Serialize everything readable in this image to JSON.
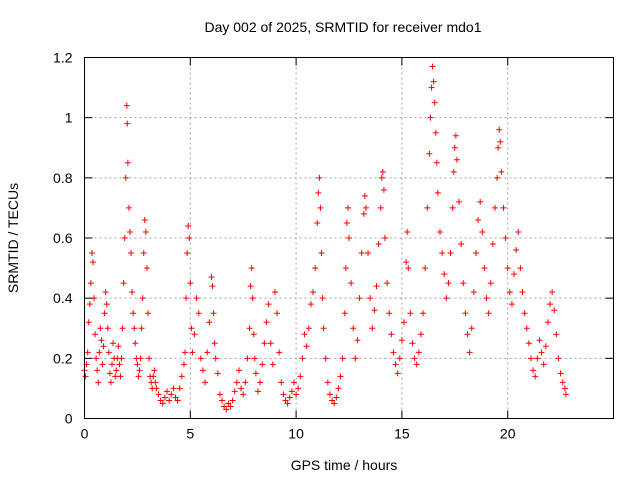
{
  "chart_data": {
    "type": "scatter",
    "title": "Day 002 of 2025, SRMTID for receiver mdo1",
    "xlabel": "GPS time / hours",
    "ylabel": "SRMTID / TECUs",
    "xlim": [
      0,
      25
    ],
    "ylim": [
      0,
      1.2
    ],
    "x_ticks": [
      0,
      5,
      10,
      15,
      20
    ],
    "x_tick_labels": [
      "0",
      "5",
      "10",
      "15",
      "20"
    ],
    "y_ticks": [
      0,
      0.2,
      0.4,
      0.6,
      0.8,
      1.0,
      1.2
    ],
    "y_tick_labels": [
      "0",
      "0.2",
      "0.4",
      "0.6",
      "0.8",
      "1",
      "1.2"
    ],
    "grid": true,
    "marker": "plus",
    "color": "#ff0000",
    "series": [
      {
        "name": "SRMTID",
        "points": [
          [
            0.0,
            0.16
          ],
          [
            0.05,
            0.14
          ],
          [
            0.1,
            0.18
          ],
          [
            0.15,
            0.22
          ],
          [
            0.2,
            0.32
          ],
          [
            0.25,
            0.38
          ],
          [
            0.3,
            0.45
          ],
          [
            0.35,
            0.55
          ],
          [
            0.4,
            0.52
          ],
          [
            0.45,
            0.4
          ],
          [
            0.5,
            0.28
          ],
          [
            0.55,
            0.2
          ],
          [
            0.6,
            0.16
          ],
          [
            0.65,
            0.12
          ],
          [
            0.7,
            0.22
          ],
          [
            0.75,
            0.3
          ],
          [
            0.8,
            0.26
          ],
          [
            0.85,
            0.18
          ],
          [
            0.9,
            0.24
          ],
          [
            0.95,
            0.35
          ],
          [
            1.0,
            0.42
          ],
          [
            1.05,
            0.38
          ],
          [
            1.1,
            0.3
          ],
          [
            1.15,
            0.22
          ],
          [
            1.2,
            0.15
          ],
          [
            1.25,
            0.12
          ],
          [
            1.3,
            0.18
          ],
          [
            1.35,
            0.25
          ],
          [
            1.4,
            0.2
          ],
          [
            1.45,
            0.14
          ],
          [
            1.5,
            0.16
          ],
          [
            1.55,
            0.2
          ],
          [
            1.6,
            0.24
          ],
          [
            1.65,
            0.18
          ],
          [
            1.7,
            0.14
          ],
          [
            1.75,
            0.2
          ],
          [
            1.8,
            0.3
          ],
          [
            1.85,
            0.45
          ],
          [
            1.9,
            0.6
          ],
          [
            1.95,
            0.8
          ],
          [
            2.0,
            1.04
          ],
          [
            2.02,
            0.98
          ],
          [
            2.05,
            0.85
          ],
          [
            2.1,
            0.7
          ],
          [
            2.15,
            0.62
          ],
          [
            2.2,
            0.55
          ],
          [
            2.25,
            0.42
          ],
          [
            2.3,
            0.35
          ],
          [
            2.35,
            0.3
          ],
          [
            2.4,
            0.25
          ],
          [
            2.45,
            0.2
          ],
          [
            2.5,
            0.18
          ],
          [
            2.55,
            0.14
          ],
          [
            2.6,
            0.16
          ],
          [
            2.65,
            0.2
          ],
          [
            2.7,
            0.3
          ],
          [
            2.75,
            0.4
          ],
          [
            2.8,
            0.55
          ],
          [
            2.85,
            0.66
          ],
          [
            2.9,
            0.62
          ],
          [
            2.95,
            0.5
          ],
          [
            3.0,
            0.35
          ],
          [
            3.05,
            0.2
          ],
          [
            3.1,
            0.14
          ],
          [
            3.15,
            0.12
          ],
          [
            3.2,
            0.1
          ],
          [
            3.25,
            0.14
          ],
          [
            3.3,
            0.16
          ],
          [
            3.35,
            0.12
          ],
          [
            3.4,
            0.1
          ],
          [
            3.5,
            0.08
          ],
          [
            3.6,
            0.06
          ],
          [
            3.7,
            0.05
          ],
          [
            3.8,
            0.07
          ],
          [
            3.9,
            0.09
          ],
          [
            4.0,
            0.06
          ],
          [
            4.1,
            0.08
          ],
          [
            4.2,
            0.1
          ],
          [
            4.3,
            0.07
          ],
          [
            4.4,
            0.06
          ],
          [
            4.5,
            0.1
          ],
          [
            4.6,
            0.14
          ],
          [
            4.7,
            0.18
          ],
          [
            4.75,
            0.22
          ],
          [
            4.8,
            0.4
          ],
          [
            4.85,
            0.55
          ],
          [
            4.9,
            0.64
          ],
          [
            4.95,
            0.6
          ],
          [
            5.0,
            0.45
          ],
          [
            5.05,
            0.3
          ],
          [
            5.1,
            0.22
          ],
          [
            5.2,
            0.28
          ],
          [
            5.3,
            0.4
          ],
          [
            5.4,
            0.35
          ],
          [
            5.5,
            0.2
          ],
          [
            5.6,
            0.16
          ],
          [
            5.7,
            0.12
          ],
          [
            5.8,
            0.22
          ],
          [
            5.9,
            0.32
          ],
          [
            6.0,
            0.47
          ],
          [
            6.05,
            0.44
          ],
          [
            6.1,
            0.35
          ],
          [
            6.15,
            0.25
          ],
          [
            6.2,
            0.2
          ],
          [
            6.3,
            0.15
          ],
          [
            6.4,
            0.08
          ],
          [
            6.5,
            0.06
          ],
          [
            6.6,
            0.04
          ],
          [
            6.7,
            0.03
          ],
          [
            6.8,
            0.05
          ],
          [
            6.9,
            0.04
          ],
          [
            7.0,
            0.06
          ],
          [
            7.1,
            0.09
          ],
          [
            7.2,
            0.12
          ],
          [
            7.3,
            0.16
          ],
          [
            7.4,
            0.1
          ],
          [
            7.5,
            0.08
          ],
          [
            7.6,
            0.12
          ],
          [
            7.7,
            0.2
          ],
          [
            7.8,
            0.3
          ],
          [
            7.85,
            0.44
          ],
          [
            7.9,
            0.5
          ],
          [
            7.95,
            0.4
          ],
          [
            8.0,
            0.28
          ],
          [
            8.05,
            0.2
          ],
          [
            8.1,
            0.15
          ],
          [
            8.2,
            0.09
          ],
          [
            8.3,
            0.12
          ],
          [
            8.4,
            0.18
          ],
          [
            8.5,
            0.25
          ],
          [
            8.6,
            0.32
          ],
          [
            8.7,
            0.38
          ],
          [
            8.8,
            0.25
          ],
          [
            8.9,
            0.18
          ],
          [
            9.0,
            0.42
          ],
          [
            9.1,
            0.35
          ],
          [
            9.2,
            0.22
          ],
          [
            9.3,
            0.12
          ],
          [
            9.4,
            0.08
          ],
          [
            9.5,
            0.06
          ],
          [
            9.6,
            0.05
          ],
          [
            9.7,
            0.07
          ],
          [
            9.8,
            0.09
          ],
          [
            9.9,
            0.12
          ],
          [
            10.0,
            0.08
          ],
          [
            10.1,
            0.1
          ],
          [
            10.2,
            0.14
          ],
          [
            10.3,
            0.2
          ],
          [
            10.4,
            0.28
          ],
          [
            10.5,
            0.24
          ],
          [
            10.6,
            0.3
          ],
          [
            10.7,
            0.38
          ],
          [
            10.8,
            0.42
          ],
          [
            10.9,
            0.5
          ],
          [
            11.0,
            0.65
          ],
          [
            11.05,
            0.75
          ],
          [
            11.1,
            0.8
          ],
          [
            11.15,
            0.7
          ],
          [
            11.2,
            0.55
          ],
          [
            11.25,
            0.4
          ],
          [
            11.3,
            0.3
          ],
          [
            11.4,
            0.2
          ],
          [
            11.5,
            0.12
          ],
          [
            11.6,
            0.08
          ],
          [
            11.7,
            0.06
          ],
          [
            11.8,
            0.05
          ],
          [
            11.9,
            0.07
          ],
          [
            12.0,
            0.1
          ],
          [
            12.1,
            0.14
          ],
          [
            12.2,
            0.2
          ],
          [
            12.3,
            0.35
          ],
          [
            12.35,
            0.5
          ],
          [
            12.4,
            0.65
          ],
          [
            12.45,
            0.7
          ],
          [
            12.5,
            0.6
          ],
          [
            12.6,
            0.45
          ],
          [
            12.7,
            0.3
          ],
          [
            12.8,
            0.2
          ],
          [
            12.9,
            0.26
          ],
          [
            13.0,
            0.4
          ],
          [
            13.1,
            0.55
          ],
          [
            13.2,
            0.68
          ],
          [
            13.25,
            0.74
          ],
          [
            13.3,
            0.7
          ],
          [
            13.4,
            0.55
          ],
          [
            13.5,
            0.4
          ],
          [
            13.6,
            0.3
          ],
          [
            13.7,
            0.36
          ],
          [
            13.8,
            0.44
          ],
          [
            13.9,
            0.58
          ],
          [
            14.0,
            0.7
          ],
          [
            14.05,
            0.8
          ],
          [
            14.1,
            0.82
          ],
          [
            14.15,
            0.76
          ],
          [
            14.2,
            0.6
          ],
          [
            14.3,
            0.45
          ],
          [
            14.4,
            0.35
          ],
          [
            14.5,
            0.28
          ],
          [
            14.6,
            0.22
          ],
          [
            14.7,
            0.18
          ],
          [
            14.8,
            0.15
          ],
          [
            14.9,
            0.2
          ],
          [
            15.0,
            0.26
          ],
          [
            15.1,
            0.32
          ],
          [
            15.2,
            0.52
          ],
          [
            15.25,
            0.62
          ],
          [
            15.3,
            0.5
          ],
          [
            15.4,
            0.35
          ],
          [
            15.5,
            0.25
          ],
          [
            15.6,
            0.2
          ],
          [
            15.7,
            0.18
          ],
          [
            15.8,
            0.22
          ],
          [
            15.9,
            0.28
          ],
          [
            16.0,
            0.35
          ],
          [
            16.1,
            0.5
          ],
          [
            16.2,
            0.7
          ],
          [
            16.3,
            0.88
          ],
          [
            16.35,
            1.0
          ],
          [
            16.4,
            1.1
          ],
          [
            16.45,
            1.17
          ],
          [
            16.5,
            1.12
          ],
          [
            16.55,
            1.05
          ],
          [
            16.6,
            0.95
          ],
          [
            16.65,
            0.85
          ],
          [
            16.7,
            0.75
          ],
          [
            16.8,
            0.62
          ],
          [
            16.9,
            0.55
          ],
          [
            17.0,
            0.48
          ],
          [
            17.1,
            0.4
          ],
          [
            17.2,
            0.45
          ],
          [
            17.3,
            0.55
          ],
          [
            17.4,
            0.7
          ],
          [
            17.45,
            0.82
          ],
          [
            17.5,
            0.9
          ],
          [
            17.55,
            0.94
          ],
          [
            17.6,
            0.86
          ],
          [
            17.7,
            0.72
          ],
          [
            17.8,
            0.58
          ],
          [
            17.9,
            0.45
          ],
          [
            18.0,
            0.35
          ],
          [
            18.1,
            0.28
          ],
          [
            18.2,
            0.22
          ],
          [
            18.3,
            0.3
          ],
          [
            18.4,
            0.42
          ],
          [
            18.5,
            0.55
          ],
          [
            18.6,
            0.66
          ],
          [
            18.7,
            0.72
          ],
          [
            18.8,
            0.62
          ],
          [
            18.9,
            0.5
          ],
          [
            19.0,
            0.4
          ],
          [
            19.1,
            0.35
          ],
          [
            19.2,
            0.45
          ],
          [
            19.3,
            0.58
          ],
          [
            19.4,
            0.7
          ],
          [
            19.5,
            0.8
          ],
          [
            19.55,
            0.9
          ],
          [
            19.6,
            0.96
          ],
          [
            19.65,
            0.92
          ],
          [
            19.7,
            0.82
          ],
          [
            19.8,
            0.7
          ],
          [
            19.9,
            0.6
          ],
          [
            20.0,
            0.5
          ],
          [
            20.1,
            0.42
          ],
          [
            20.2,
            0.38
          ],
          [
            20.3,
            0.48
          ],
          [
            20.4,
            0.56
          ],
          [
            20.5,
            0.62
          ],
          [
            20.6,
            0.5
          ],
          [
            20.7,
            0.42
          ],
          [
            20.8,
            0.35
          ],
          [
            20.9,
            0.3
          ],
          [
            21.0,
            0.25
          ],
          [
            21.1,
            0.2
          ],
          [
            21.2,
            0.16
          ],
          [
            21.3,
            0.14
          ],
          [
            21.4,
            0.2
          ],
          [
            21.5,
            0.26
          ],
          [
            21.6,
            0.22
          ],
          [
            21.7,
            0.18
          ],
          [
            21.8,
            0.24
          ],
          [
            21.9,
            0.32
          ],
          [
            22.0,
            0.38
          ],
          [
            22.1,
            0.42
          ],
          [
            22.2,
            0.36
          ],
          [
            22.3,
            0.28
          ],
          [
            22.4,
            0.2
          ],
          [
            22.5,
            0.15
          ],
          [
            22.6,
            0.12
          ],
          [
            22.7,
            0.1
          ],
          [
            22.75,
            0.08
          ]
        ]
      }
    ]
  }
}
